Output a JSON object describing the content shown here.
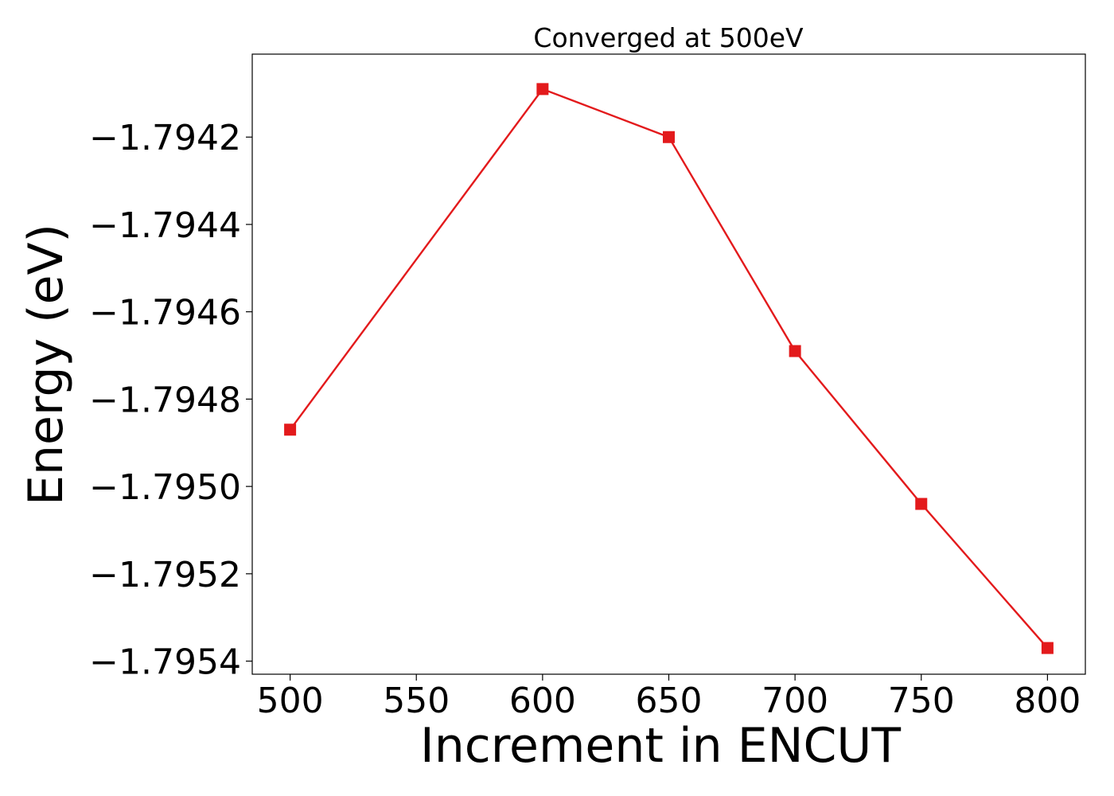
{
  "chart_data": {
    "type": "line",
    "title": "Converged at 500eV",
    "xlabel": "Increment in ENCUT",
    "ylabel": "Energy (eV)",
    "xlim": [
      485,
      815
    ],
    "ylim": [
      -1.79543,
      -1.79401
    ],
    "x_ticks": [
      500,
      550,
      600,
      650,
      700,
      750,
      800
    ],
    "x_tick_labels": [
      "500",
      "550",
      "600",
      "650",
      "700",
      "750",
      "800"
    ],
    "y_ticks": [
      -1.7942,
      -1.7944,
      -1.7946,
      -1.7948,
      -1.795,
      -1.7952,
      -1.7954
    ],
    "y_tick_labels": [
      "−1.7942",
      "−1.7944",
      "−1.7946",
      "−1.7948",
      "−1.7950",
      "−1.7952",
      "−1.7954"
    ],
    "grid": false,
    "series": [
      {
        "color": "#e31a1c",
        "marker": "square",
        "x": [
          500,
          600,
          650,
          700,
          750,
          800
        ],
        "y": [
          -1.79487,
          -1.79409,
          -1.7942,
          -1.79469,
          -1.79504,
          -1.79537
        ]
      }
    ]
  }
}
